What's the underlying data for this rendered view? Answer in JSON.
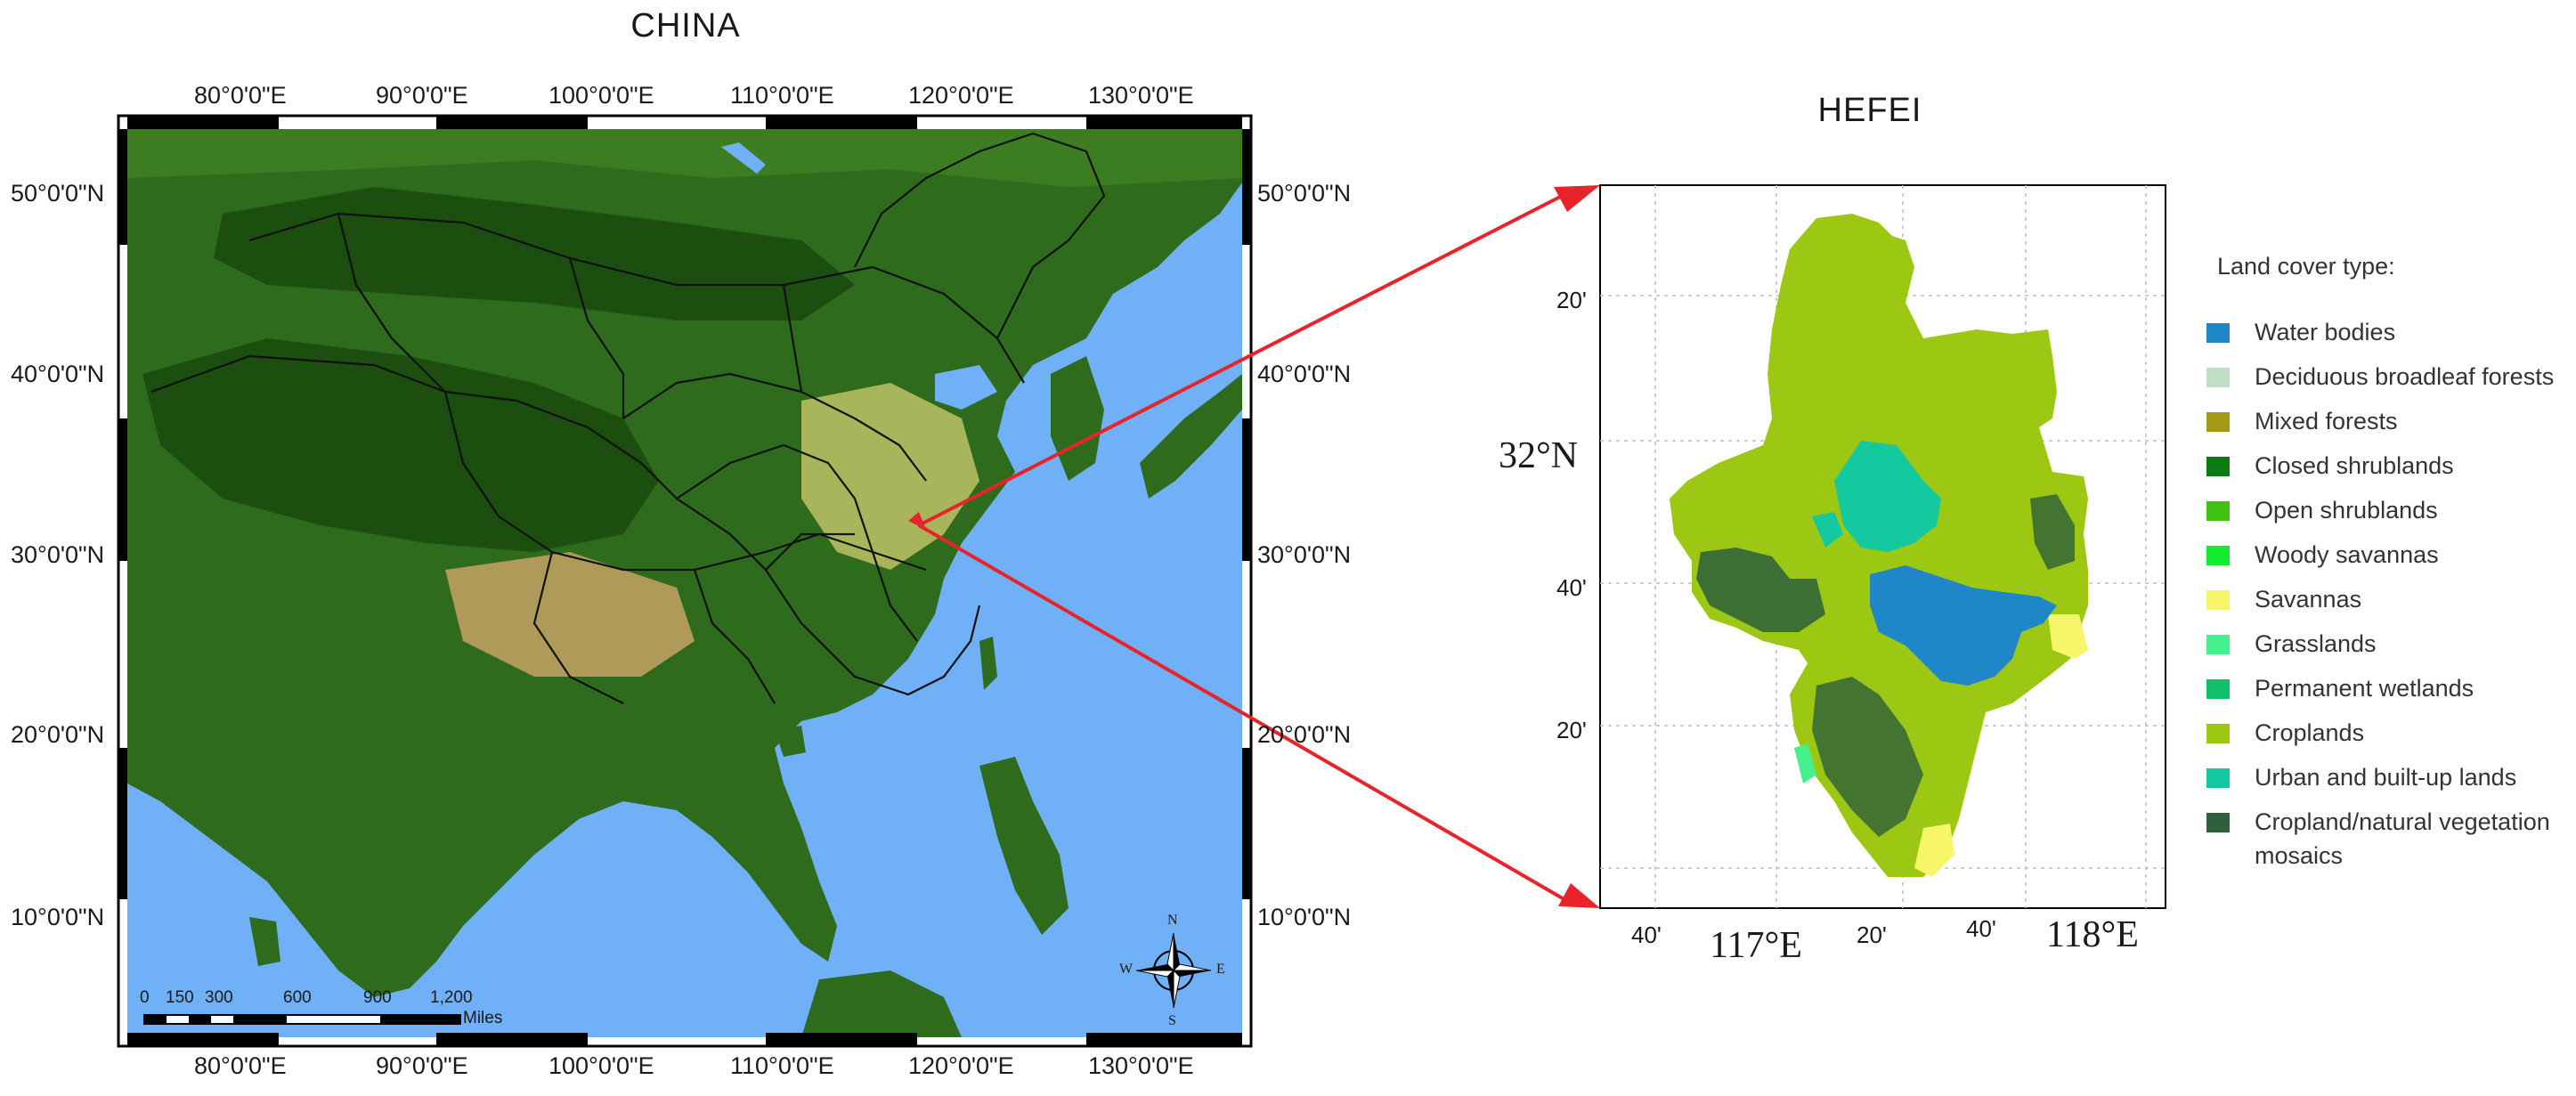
{
  "china_map": {
    "title": "CHINA",
    "lon_labels": [
      "80°0'0\"E",
      "90°0'0\"E",
      "100°0'0\"E",
      "110°0'0\"E",
      "120°0'0\"E",
      "130°0'0\"E"
    ],
    "lat_labels": [
      "50°0'0\"N",
      "40°0'0\"N",
      "30°0'0\"N",
      "20°0'0\"N",
      "10°0'0\"N"
    ],
    "scale_bar": {
      "ticks": [
        "0",
        "150",
        "300",
        "600",
        "900",
        "1,200"
      ],
      "unit": "Miles"
    },
    "compass": {
      "n": "N",
      "s": "S",
      "e": "E",
      "w": "W"
    },
    "colors": {
      "ocean": "#6fb0f6",
      "lowland": "#2f6b1c",
      "highland": "#1b4e0f",
      "plain": "#a9b55a",
      "desert": "#b09a5a"
    }
  },
  "hefei_map": {
    "title": "HEFEI",
    "lat_labels": [
      "20'",
      "32°N",
      "40'",
      "20'"
    ],
    "lon_labels": [
      "40'",
      "117°E",
      "20'",
      "40'",
      "118°E"
    ],
    "legend_title": "Land cover type:",
    "legend": [
      {
        "label": "Water bodies",
        "color": "#1f86c8"
      },
      {
        "label": "Deciduous broadleaf forests",
        "color": "#bfe0c4"
      },
      {
        "label": "Mixed forests",
        "color": "#a39b13"
      },
      {
        "label": "Closed shrublands",
        "color": "#0c7a15"
      },
      {
        "label": "Open shrublands",
        "color": "#3fc112"
      },
      {
        "label": "Woody savannas",
        "color": "#12ee2f"
      },
      {
        "label": "Savannas",
        "color": "#f7f56a"
      },
      {
        "label": "Grasslands",
        "color": "#43f08c"
      },
      {
        "label": "Permanent wetlands",
        "color": "#10c06a"
      },
      {
        "label": "Croplands",
        "color": "#9cc814"
      },
      {
        "label": "Urban and built-up lands",
        "color": "#14c8a0"
      },
      {
        "label": "Cropland/natural vegetation",
        "color": "#2d5f3a"
      }
    ],
    "legend_last_line2": "mosaics"
  }
}
